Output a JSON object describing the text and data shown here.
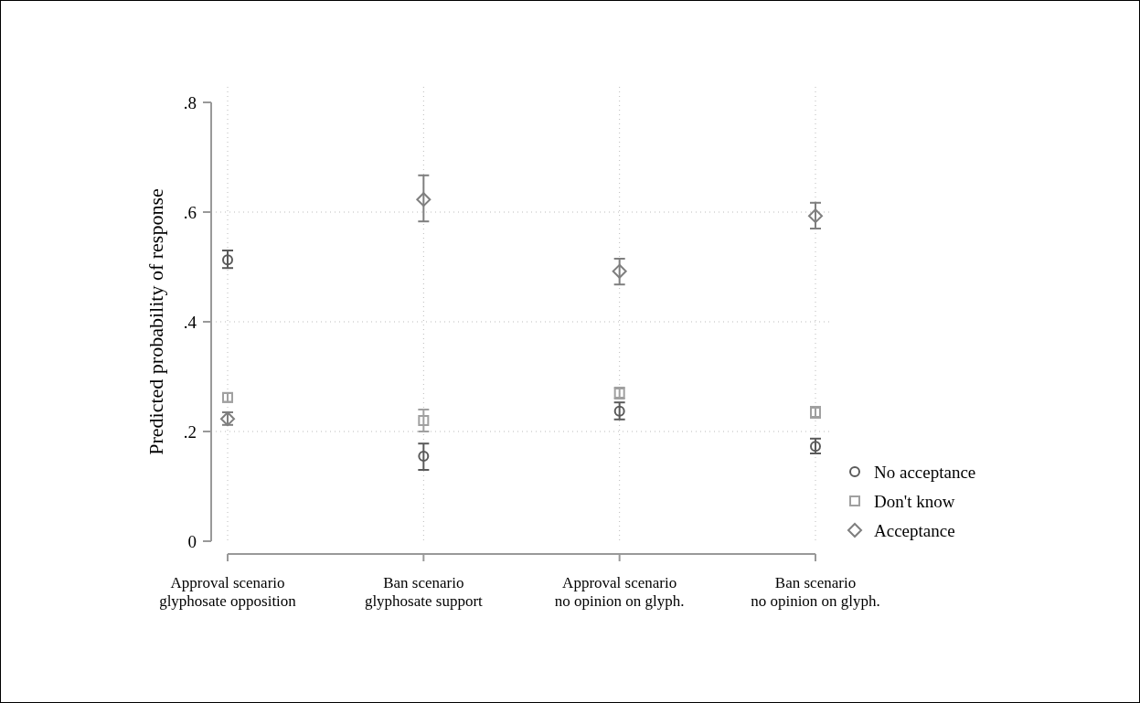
{
  "chart_data": {
    "type": "scatter",
    "ylabel": "Predicted probability of response",
    "categories": [
      "Approval scenario\nglyphosate opposition",
      "Ban scenario\nglyphosate support",
      "Approval scenario\nno opinion on glyph.",
      "Ban scenario\nno opinion on glyph."
    ],
    "series": [
      {
        "name": "No acceptance",
        "color": "#5a5a5a",
        "marker": "circle",
        "values": [
          0.513,
          0.155,
          0.237,
          0.173
        ],
        "errors": [
          [
            0.498,
            0.53
          ],
          [
            0.13,
            0.178
          ],
          [
            0.222,
            0.253
          ],
          [
            0.16,
            0.187
          ]
        ]
      },
      {
        "name": "Don't know",
        "color": "#a0a0a0",
        "marker": "square",
        "values": [
          0.262,
          0.22,
          0.27,
          0.235
        ],
        "errors": [
          [
            0.254,
            0.27
          ],
          [
            0.2,
            0.24
          ],
          [
            0.26,
            0.28
          ],
          [
            0.225,
            0.245
          ]
        ]
      },
      {
        "name": "Acceptance",
        "color": "#7f7f7f",
        "marker": "diamond",
        "values": [
          0.223,
          0.623,
          0.492,
          0.593
        ],
        "errors": [
          [
            0.212,
            0.235
          ],
          [
            0.583,
            0.667
          ],
          [
            0.468,
            0.515
          ],
          [
            0.57,
            0.617
          ]
        ]
      }
    ],
    "ylim": [
      0,
      0.8
    ],
    "yticks": [
      {
        "value": 0,
        "label": "0"
      },
      {
        "value": 0.2,
        "label": ".2"
      },
      {
        "value": 0.4,
        "label": ".4"
      },
      {
        "value": 0.6,
        "label": ".6"
      },
      {
        "value": 0.8,
        "label": ".8"
      }
    ],
    "grid": true,
    "legend": "right"
  }
}
